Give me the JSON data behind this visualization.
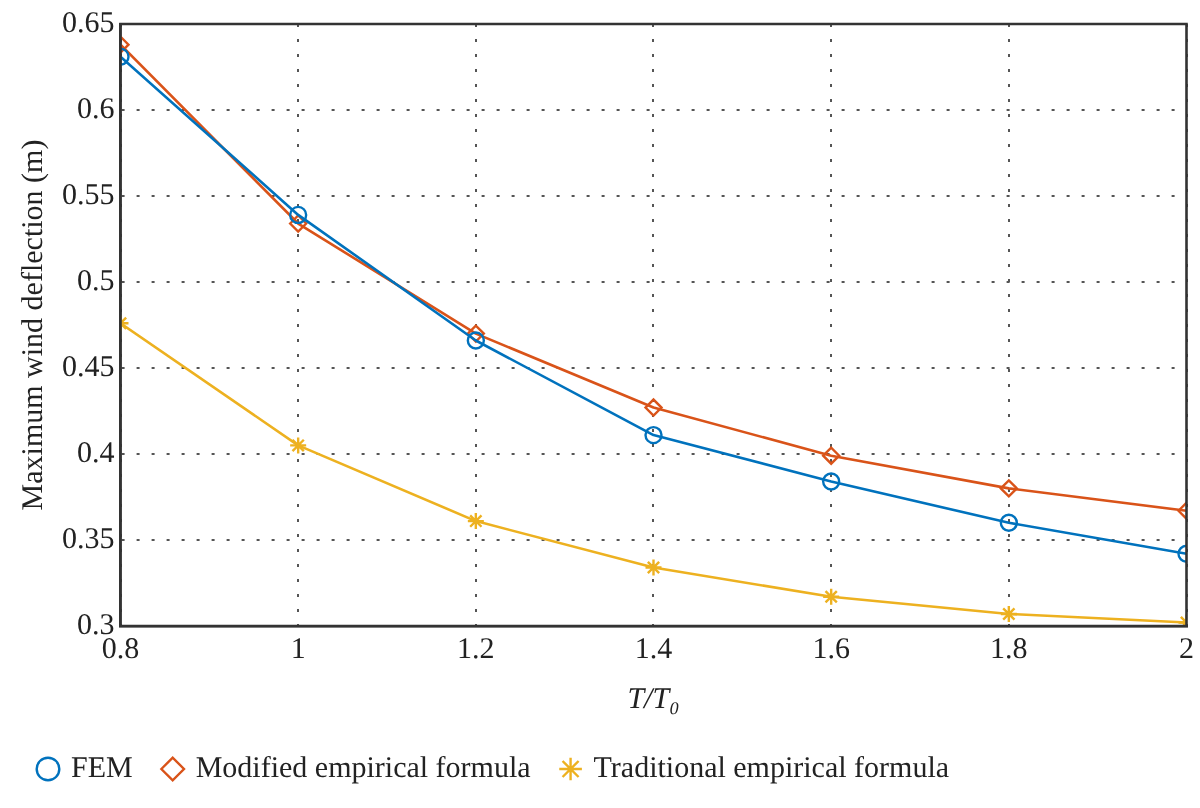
{
  "chart_data": {
    "type": "line",
    "xlabel": "T/T₀",
    "ylabel": "Maximum wind deflection (m)",
    "x": [
      0.8,
      1,
      1.2,
      1.4,
      1.6,
      1.8,
      2
    ],
    "series": [
      {
        "name": "FEM",
        "color": "#0072bd",
        "marker": "circle",
        "values": [
          0.631,
          0.539,
          0.466,
          0.411,
          0.384,
          0.36,
          0.342
        ]
      },
      {
        "name": "Modified empirical formula",
        "color": "#d95319",
        "marker": "diamond",
        "values": [
          0.638,
          0.534,
          0.47,
          0.427,
          0.399,
          0.38,
          0.367
        ]
      },
      {
        "name": "Traditional empirical formula",
        "color": "#edb120",
        "marker": "cross",
        "values": [
          0.476,
          0.405,
          0.361,
          0.334,
          0.317,
          0.307,
          0.302
        ]
      }
    ],
    "xlim": [
      0.8,
      2
    ],
    "xticks": [
      0.8,
      1,
      1.2,
      1.4,
      1.6,
      1.8,
      2
    ],
    "ylim": [
      0.3,
      0.65
    ],
    "yticks": [
      0.3,
      0.35,
      0.4,
      0.45,
      0.5,
      0.55,
      0.6,
      0.65
    ],
    "grid": true,
    "legend": "bottom",
    "line_style": "solid"
  }
}
